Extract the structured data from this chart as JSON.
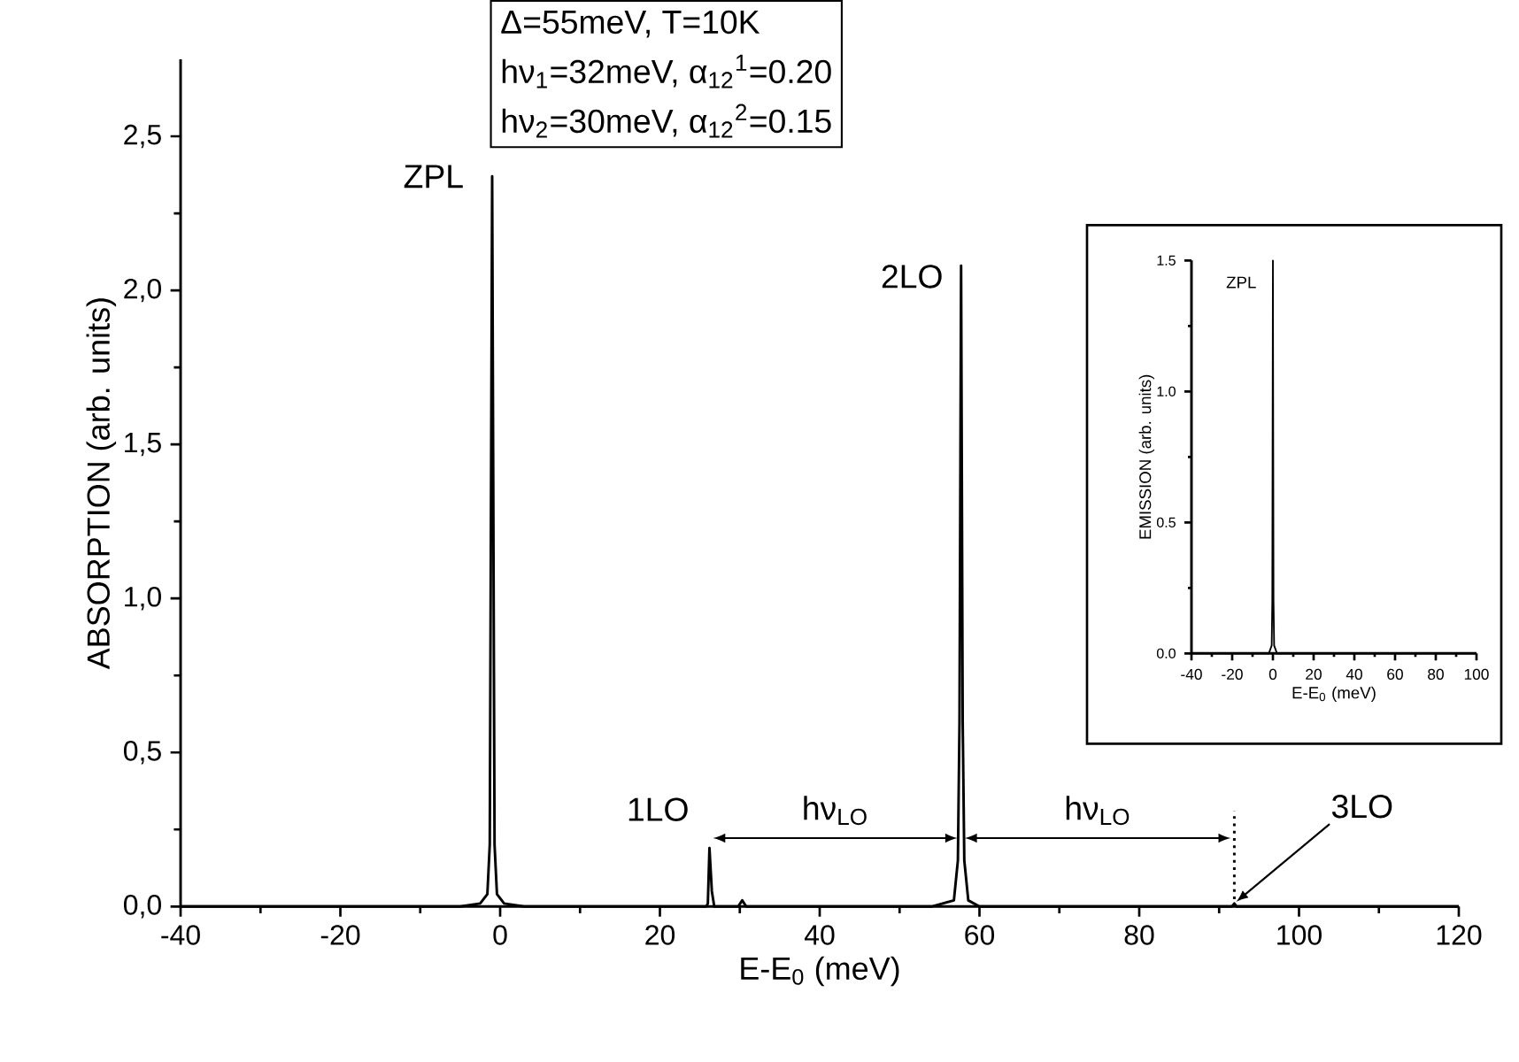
{
  "chart_data": [
    {
      "type": "line",
      "xlabel": "E-E$_{0}$ (meV)",
      "ylabel": "ABSORPTION (arb. units)",
      "xlim": [
        -40,
        120
      ],
      "xticks": [
        -40,
        -20,
        0,
        20,
        40,
        60,
        80,
        100,
        120
      ],
      "ylim": [
        0,
        2.75
      ],
      "yticks": [
        {
          "value": 0,
          "label": "0,0"
        },
        {
          "value": 0.5,
          "label": "0,5"
        },
        {
          "value": 1,
          "label": "1,0"
        },
        {
          "value": 1.5,
          "label": "1,5"
        },
        {
          "value": 2,
          "label": "2,0"
        },
        {
          "value": 2.5,
          "label": "2,5"
        }
      ],
      "marker": "none",
      "series": [
        {
          "color": "#000000",
          "line_style": "solid",
          "x": [
            -40,
            -5,
            -2.5,
            -1.6,
            -1.3,
            -1.0,
            -0.7,
            -0.4,
            0.5,
            3,
            25.8,
            26.0,
            26.2,
            26.5,
            26.8,
            29.8,
            30.3,
            30.8,
            54,
            56.8,
            57.3,
            57.5,
            57.7,
            57.9,
            58.1,
            58.6,
            60,
            91.6,
            91.9,
            92.2,
            120
          ],
          "values": [
            0,
            0,
            0.01,
            0.04,
            0.2,
            2.37,
            0.2,
            0.04,
            0.01,
            0,
            0,
            0.01,
            0.19,
            0.05,
            0,
            0,
            0.02,
            0,
            0,
            0.02,
            0.15,
            0.6,
            2.08,
            0.6,
            0.15,
            0.02,
            0,
            0,
            0.01,
            0,
            0
          ]
        },
        {
          "color": "#000000",
          "line_style": "dotted",
          "x": [
            91.9,
            91.9
          ],
          "values": [
            0,
            0.31
          ]
        }
      ],
      "annotations": [
        "Δ=55meV, T=10K",
        "hν$_{1}$=32meV, α$_{12}$$^{1}$=0.20",
        "hν$_{2}$=30meV, α$_{12}$$^{2}$=0.15",
        {
          "text": "ZPL",
          "x": -1.0,
          "y": 2.37
        },
        {
          "text": "1LO",
          "x": 26.2,
          "y": 0.19
        },
        {
          "text": "2LO",
          "x": 57.7,
          "y": 2.08
        },
        {
          "text": "3LO",
          "x": 91.9,
          "y": 0.01
        },
        "hν$_{LO}$",
        "hν$_{LO}$"
      ]
    },
    {
      "type": "line",
      "xlabel": "E-E$_{0}$ (meV)",
      "ylabel": "EMISSION (arb. units)",
      "xlim": [
        -40,
        100
      ],
      "xticks": [
        -40,
        -20,
        0,
        20,
        40,
        60,
        80,
        100
      ],
      "ylim": [
        0,
        1.5
      ],
      "yticks": [
        {
          "value": 0,
          "label": "0.0"
        },
        {
          "value": 0.5,
          "label": "0.5"
        },
        {
          "value": 1,
          "label": "1.0"
        },
        {
          "value": 1.5,
          "label": "1.5"
        }
      ],
      "marker": "none",
      "series": [
        {
          "color": "#000000",
          "line_style": "solid",
          "x": [
            -40,
            -2,
            -0.6,
            -0.3,
            0,
            0.3,
            0.6,
            2,
            100
          ],
          "values": [
            0,
            0,
            0.03,
            0.2,
            1.5,
            0.2,
            0.03,
            0,
            0
          ]
        }
      ],
      "annotations": [
        {
          "text": "ZPL",
          "x": 0,
          "y": 1.5
        }
      ]
    }
  ]
}
